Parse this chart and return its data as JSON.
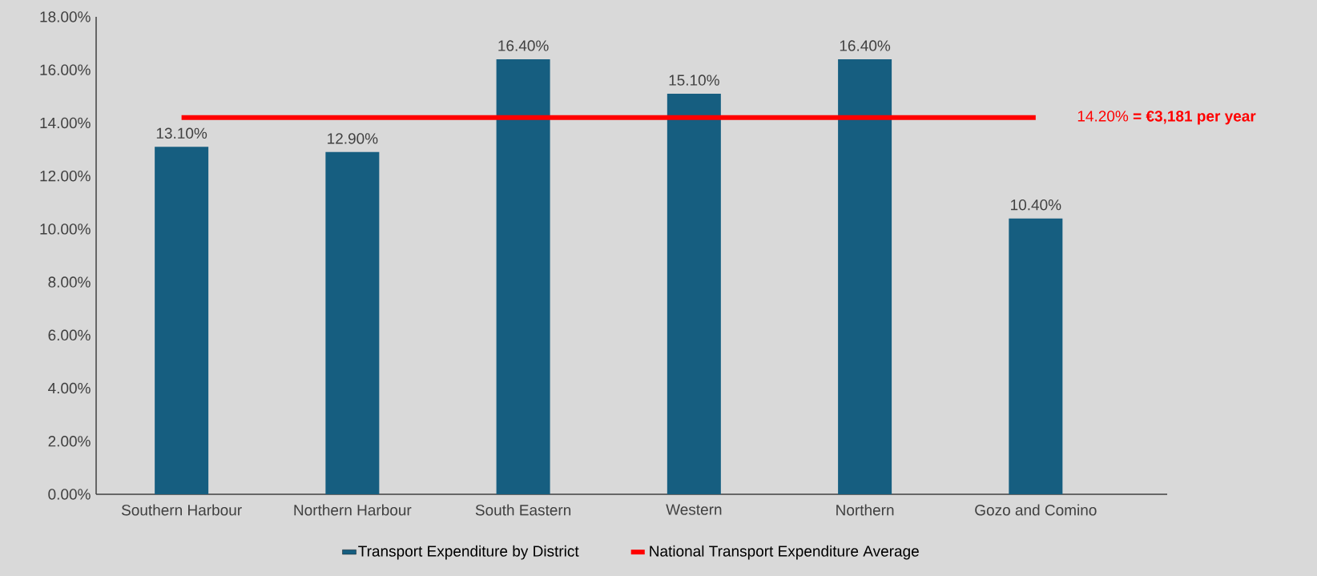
{
  "chart_data": {
    "type": "bar",
    "categories": [
      "Southern Harbour",
      "Northern Harbour",
      "South Eastern",
      "Western",
      "Northern",
      "Gozo and Comino"
    ],
    "series": [
      {
        "name": "Transport Expenditure by District",
        "color": "#165e80",
        "values": [
          13.1,
          12.9,
          16.4,
          15.1,
          16.4,
          10.4
        ],
        "value_labels": [
          "13.10%",
          "12.90%",
          "16.40%",
          "15.10%",
          "16.40%",
          "10.40%"
        ]
      },
      {
        "name": "National Transport Expenditure Average",
        "type": "line",
        "color": "#ff0000",
        "values": [
          14.2,
          14.2,
          14.2,
          14.2,
          14.2,
          14.2
        ]
      }
    ],
    "ylim": [
      0,
      18
    ],
    "yticks": [
      {
        "value": 0,
        "label": "0.00%"
      },
      {
        "value": 2,
        "label": "2.00%"
      },
      {
        "value": 4,
        "label": "4.00%"
      },
      {
        "value": 6,
        "label": "6.00%"
      },
      {
        "value": 8,
        "label": "8.00%"
      },
      {
        "value": 10,
        "label": "10.00%"
      },
      {
        "value": 12,
        "label": "12.00%"
      },
      {
        "value": 14,
        "label": "14.00%"
      },
      {
        "value": 16,
        "label": "16.00%"
      },
      {
        "value": 18,
        "label": "18.00%"
      }
    ],
    "annotations": [
      "14.20% **= €3,181 per year**"
    ],
    "grid": false,
    "legend": "bottom"
  }
}
